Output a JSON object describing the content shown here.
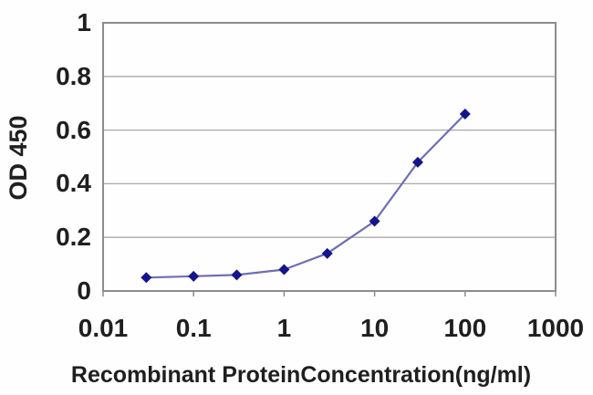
{
  "chart_data": {
    "type": "line",
    "title": "",
    "xlabel": "Recombinant ProteinConcentration(ng/ml)",
    "ylabel": "OD 450",
    "x_scale": "log",
    "xlim": [
      0.01,
      1000
    ],
    "ylim": [
      0,
      1
    ],
    "x": [
      0.03,
      0.1,
      0.3,
      1,
      3,
      10,
      30,
      100
    ],
    "y": [
      0.05,
      0.055,
      0.06,
      0.08,
      0.14,
      0.26,
      0.48,
      0.66
    ],
    "x_tick_values": [
      0.01,
      0.1,
      1,
      10,
      100,
      1000
    ],
    "x_tick_labels": [
      "0.01",
      "0.1",
      "1",
      "10",
      "100",
      "1000"
    ],
    "y_tick_values": [
      0,
      0.2,
      0.4,
      0.6,
      0.8,
      1
    ],
    "y_tick_labels": [
      "0",
      "0.2",
      "0.4",
      "0.6",
      "0.8",
      "1"
    ],
    "grid": "horizontal",
    "legend_position": "none",
    "marker_shape": "diamond",
    "colors": {
      "line": "#6e6eb6",
      "marker": "#14148c",
      "grid": "#aaaaaa",
      "axis": "#8c8c8c",
      "text": "#1f1f1f",
      "background": "#fefefe"
    }
  }
}
